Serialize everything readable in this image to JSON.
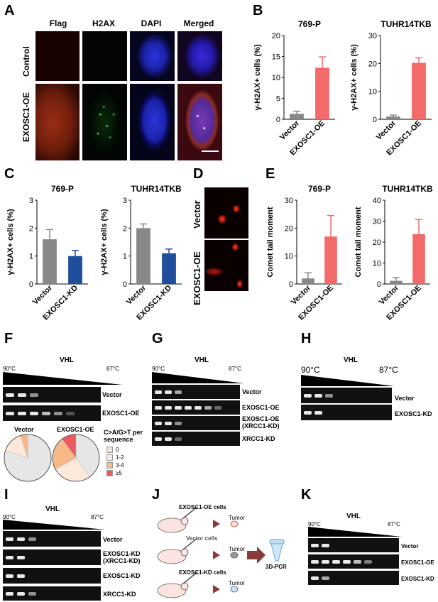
{
  "panels": {
    "A": "A",
    "B": "B",
    "C": "C",
    "D": "D",
    "E": "E",
    "F": "F",
    "G": "G",
    "H": "H",
    "I": "I",
    "J": "J",
    "K": "K"
  },
  "panelA": {
    "columns": [
      "Flag",
      "H2AX",
      "DAPI",
      "Merged"
    ],
    "rows": [
      "Control",
      "EXOSC1-OE"
    ]
  },
  "panelD": {
    "rows": [
      "Vector",
      "EXOSC1-OE"
    ]
  },
  "colors": {
    "gray": "#888888",
    "red": "#f26a6a",
    "blue": "#1f4e9c"
  },
  "chart_data": [
    {
      "panel": "B",
      "type": "bar",
      "title": "769-P",
      "ylabel": "γ-H2AX+ cells (%)",
      "categories": [
        "Vector",
        "EXOSC1-OE"
      ],
      "values": [
        1.3,
        12.3
      ],
      "errors": [
        0.6,
        2.6
      ],
      "ylim": [
        0,
        20
      ],
      "yticks": [
        "0",
        "5",
        "10",
        "15",
        "20"
      ],
      "colors": [
        "#888888",
        "#f26a6a"
      ]
    },
    {
      "panel": "B",
      "type": "bar",
      "title": "TUHR14TKB",
      "ylabel": "γ-H2AX+ cells (%)",
      "categories": [
        "Vector",
        "EXOSC1-OE"
      ],
      "values": [
        1.0,
        20.2
      ],
      "errors": [
        0.5,
        1.8
      ],
      "ylim": [
        0,
        30
      ],
      "yticks": [
        "0",
        "10",
        "20",
        "30"
      ],
      "colors": [
        "#888888",
        "#f26a6a"
      ]
    },
    {
      "panel": "C",
      "type": "bar",
      "title": "769-P",
      "ylabel": "γ-H2AX+ cells (%)",
      "categories": [
        "Vector",
        "EXOSC1-KD"
      ],
      "values": [
        1.6,
        1.0
      ],
      "errors": [
        0.35,
        0.2
      ],
      "ylim": [
        0,
        3
      ],
      "yticks": [
        "0",
        "1",
        "2",
        "3"
      ],
      "colors": [
        "#888888",
        "#1f4e9c"
      ]
    },
    {
      "panel": "C",
      "type": "bar",
      "title": "TUHR14TKB",
      "ylabel": "γ-H2AX+ cells (%)",
      "categories": [
        "Vector",
        "EXOSC1-KD"
      ],
      "values": [
        2.0,
        1.1
      ],
      "errors": [
        0.15,
        0.15
      ],
      "ylim": [
        0,
        3
      ],
      "yticks": [
        "0",
        "1",
        "2",
        "3"
      ],
      "colors": [
        "#888888",
        "#1f4e9c"
      ]
    },
    {
      "panel": "E",
      "type": "bar",
      "title": "769-P",
      "ylabel": "Comet tail moment",
      "categories": [
        "Vector",
        "EXOSC1-OE"
      ],
      "values": [
        2.0,
        17.0
      ],
      "errors": [
        2.0,
        7.5
      ],
      "ylim": [
        0,
        30
      ],
      "yticks": [
        "0",
        "10",
        "20",
        "30"
      ],
      "colors": [
        "#888888",
        "#f26a6a"
      ]
    },
    {
      "panel": "E",
      "type": "bar",
      "title": "TUHR14TKB",
      "ylabel": "Comet tail moment",
      "categories": [
        "Vector",
        "EXOSC1-OE"
      ],
      "values": [
        1.5,
        23.8
      ],
      "errors": [
        1.5,
        7.0
      ],
      "ylim": [
        0,
        40
      ],
      "yticks": [
        "0",
        "10",
        "20",
        "30",
        "40"
      ],
      "colors": [
        "#888888",
        "#f26a6a"
      ]
    },
    {
      "panel": "F",
      "type": "pie",
      "title": "Vector",
      "labels": [
        "0",
        "1-2",
        "3-4",
        "≥5"
      ],
      "values": [
        80,
        15,
        5,
        0
      ],
      "colors": [
        "#e6e6e6",
        "#fde8dc",
        "#f6b98a",
        "#ee5a62"
      ]
    },
    {
      "panel": "F",
      "type": "pie",
      "title": "EXOSC1-OE",
      "labels": [
        "0",
        "1-2",
        "3-4",
        "≥5"
      ],
      "values": [
        40,
        27,
        23,
        10
      ],
      "colors": [
        "#e6e6e6",
        "#fde8dc",
        "#f6b98a",
        "#ee5a62"
      ]
    }
  ],
  "pieLegend": {
    "title": "C>A/G>T per sequence",
    "labels": [
      "0",
      "1-2",
      "3-4",
      "≥5"
    ],
    "colors": [
      "#e6e6e6",
      "#fde8dc",
      "#f6b98a",
      "#ee5a62"
    ]
  },
  "gels": {
    "vhl": "VHL",
    "hi": "90°C",
    "lo": "87°C",
    "F": {
      "rows": [
        "Vector",
        "EXOSC1-OE"
      ]
    },
    "G": {
      "rows": [
        "Vector",
        "EXOSC1-OE",
        "EXOSC1-OE\n(XRCC1-KD)",
        "XRCC1-KD"
      ]
    },
    "H": {
      "rows": [
        "Vector",
        "EXOSC1-KD"
      ]
    },
    "I": {
      "rows": [
        "Vector",
        "EXOSC1-KD\n(XRCC1-KD)",
        "EXOSC1-KD",
        "XRCC1-KD"
      ]
    },
    "K": {
      "rows": [
        "Vector",
        "EXOSC1-OE",
        "EXOSC1-KD"
      ]
    }
  },
  "panelJ": {
    "rows": [
      {
        "cells": "EXOSC1-OE cells",
        "color": "#c0392b"
      },
      {
        "cells": "Vector cells",
        "color": "#555555"
      },
      {
        "cells": "EXOSC1-KD cells",
        "color": "#2d5fa8"
      }
    ],
    "tumor": "Tumor",
    "assay": "3D-PCR"
  }
}
